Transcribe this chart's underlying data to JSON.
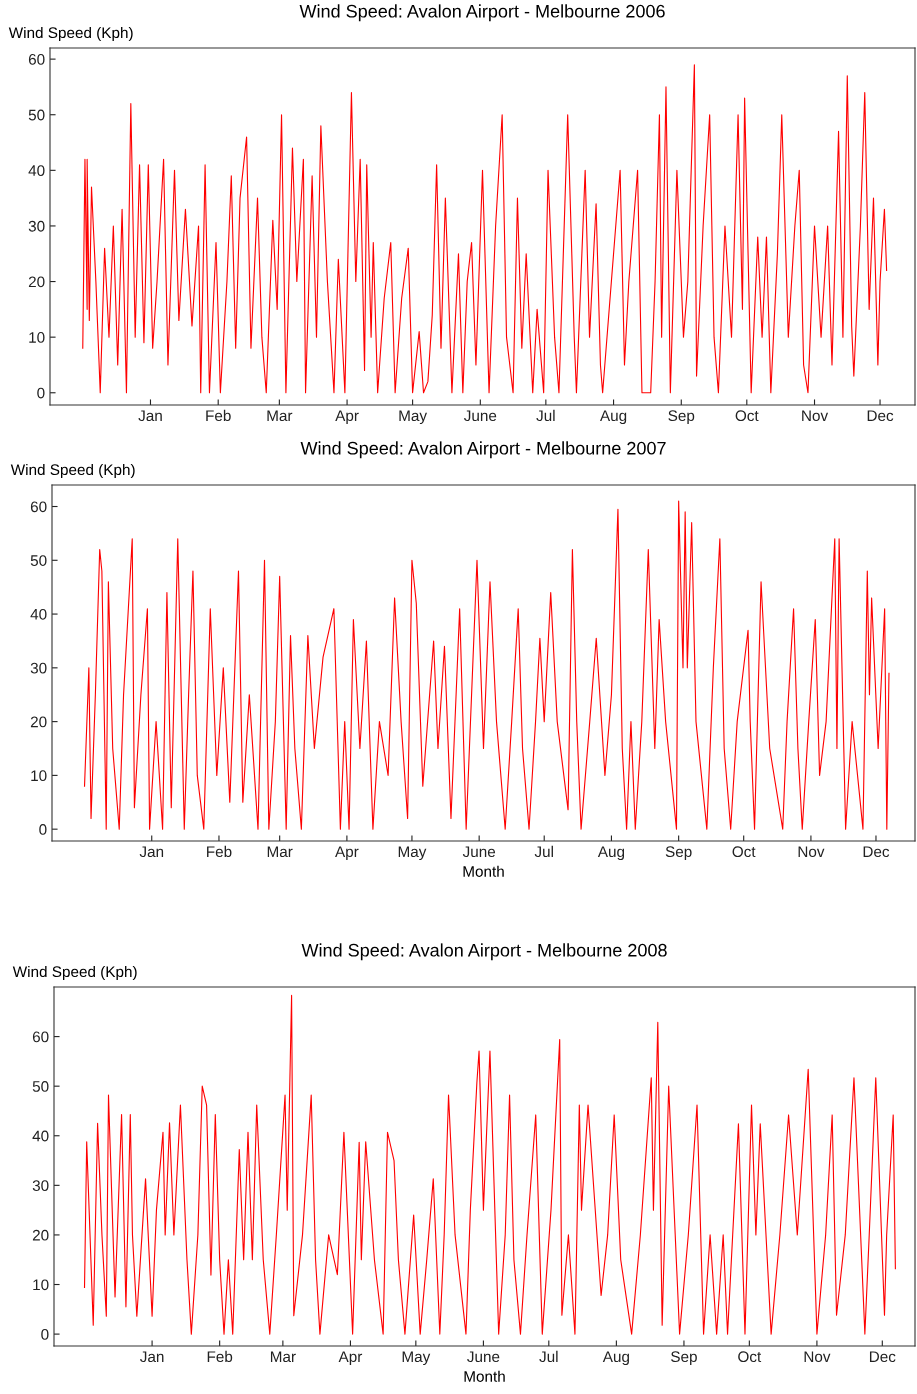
{
  "chart_data": [
    {
      "type": "line",
      "title": "Wind Speed: Avalon Airport - Melbourne 2006",
      "ylabel": "Wind Speed (Kph)",
      "xlim": [
        "2005-11-16",
        "2006-12-17"
      ],
      "ylim": [
        -2.2,
        62
      ],
      "yticks": [
        0,
        10,
        20,
        30,
        40,
        50,
        60
      ],
      "xticks": [
        {
          "value": "2006-01-01",
          "label": "Jan"
        },
        {
          "value": "2006-02-01",
          "label": "Feb"
        },
        {
          "value": "2006-03-01",
          "label": "Mar"
        },
        {
          "value": "2006-04-01",
          "label": "Apr"
        },
        {
          "value": "2006-05-01",
          "label": "May"
        },
        {
          "value": "2006-06-01",
          "label": "June"
        },
        {
          "value": "2006-07-01",
          "label": "Jul"
        },
        {
          "value": "2006-08-01",
          "label": "Aug"
        },
        {
          "value": "2006-09-01",
          "label": "Sep"
        },
        {
          "value": "2006-10-01",
          "label": "Oct"
        },
        {
          "value": "2006-11-01",
          "label": "Nov"
        },
        {
          "value": "2006-12-01",
          "label": "Dec"
        }
      ],
      "line_style": "solid",
      "series": [
        {
          "color": "#ff0000",
          "x": [
            "2005-12-01",
            "2005-12-02",
            "2005-12-03",
            "2005-12-03",
            "2005-12-04",
            "2005-12-05",
            "2005-12-07",
            "2005-12-09",
            "2005-12-11",
            "2005-12-13",
            "2005-12-15",
            "2005-12-17",
            "2005-12-19",
            "2005-12-21",
            "2005-12-23",
            "2005-12-25",
            "2005-12-27",
            "2005-12-29",
            "2005-12-31",
            "2006-01-02",
            "2006-01-04",
            "2006-01-07",
            "2006-01-09",
            "2006-01-12",
            "2006-01-14",
            "2006-01-17",
            "2006-01-20",
            "2006-01-23",
            "2006-01-24",
            "2006-01-26",
            "2006-01-28",
            "2006-01-31",
            "2006-02-02",
            "2006-02-05",
            "2006-02-07",
            "2006-02-09",
            "2006-02-11",
            "2006-02-14",
            "2006-02-16",
            "2006-02-19",
            "2006-02-21",
            "2006-02-23",
            "2006-02-26",
            "2006-02-28",
            "2006-03-02",
            "2006-03-04",
            "2006-03-07",
            "2006-03-09",
            "2006-03-12",
            "2006-03-13",
            "2006-03-16",
            "2006-03-18",
            "2006-03-20",
            "2006-03-23",
            "2006-03-26",
            "2006-03-28",
            "2006-03-31",
            "2006-04-03",
            "2006-04-05",
            "2006-04-07",
            "2006-04-09",
            "2006-04-10",
            "2006-04-12",
            "2006-04-13",
            "2006-04-15",
            "2006-04-18",
            "2006-04-21",
            "2006-04-23",
            "2006-04-26",
            "2006-04-29",
            "2006-05-01",
            "2006-05-04",
            "2006-05-06",
            "2006-05-08",
            "2006-05-10",
            "2006-05-12",
            "2006-05-14",
            "2006-05-16",
            "2006-05-19",
            "2006-05-22",
            "2006-05-24",
            "2006-05-26",
            "2006-05-28",
            "2006-05-30",
            "2006-06-02",
            "2006-06-05",
            "2006-06-08",
            "2006-06-11",
            "2006-06-13",
            "2006-06-16",
            "2006-06-18",
            "2006-06-20",
            "2006-06-22",
            "2006-06-25",
            "2006-06-27",
            "2006-06-30",
            "2006-07-02",
            "2006-07-05",
            "2006-07-07",
            "2006-07-11",
            "2006-07-14",
            "2006-07-15",
            "2006-07-19",
            "2006-07-21",
            "2006-07-24",
            "2006-07-26",
            "2006-07-27",
            "2006-07-31",
            "2006-08-04",
            "2006-08-06",
            "2006-08-08",
            "2006-08-12",
            "2006-08-14",
            "2006-08-18",
            "2006-08-20",
            "2006-08-22",
            "2006-08-23",
            "2006-08-25",
            "2006-08-27",
            "2006-08-30",
            "2006-09-02",
            "2006-09-04",
            "2006-09-07",
            "2006-09-08",
            "2006-09-11",
            "2006-09-14",
            "2006-09-16",
            "2006-09-18",
            "2006-09-21",
            "2006-09-24",
            "2006-09-27",
            "2006-09-29",
            "2006-09-30",
            "2006-10-03",
            "2006-10-06",
            "2006-10-08",
            "2006-10-10",
            "2006-10-12",
            "2006-10-15",
            "2006-10-17",
            "2006-10-20",
            "2006-10-23",
            "2006-10-25",
            "2006-10-27",
            "2006-10-29",
            "2006-11-01",
            "2006-11-04",
            "2006-11-07",
            "2006-11-09",
            "2006-11-12",
            "2006-11-14",
            "2006-11-16",
            "2006-11-18",
            "2006-11-19",
            "2006-11-22",
            "2006-11-24",
            "2006-11-26",
            "2006-11-28",
            "2006-11-30",
            "2006-12-01",
            "2006-12-03",
            "2006-12-04"
          ],
          "values": [
            8,
            42,
            15,
            42,
            13,
            37,
            20,
            0,
            26,
            10,
            30,
            5,
            33,
            0,
            52,
            10,
            41,
            9,
            41,
            8,
            20,
            42,
            5,
            40,
            13,
            33,
            12,
            30,
            0,
            41,
            0,
            27,
            0,
            20,
            39,
            8,
            35,
            46,
            8,
            35,
            10,
            0,
            31,
            15,
            50,
            0,
            44,
            20,
            42,
            0,
            39,
            10,
            48,
            20,
            0,
            24,
            0,
            54,
            20,
            42,
            4,
            41,
            10,
            27,
            0,
            17,
            27,
            0,
            17,
            26,
            0,
            11,
            0,
            2,
            14,
            41,
            8,
            35,
            0,
            25,
            0,
            20,
            27,
            5,
            40,
            0,
            30,
            50,
            10,
            0,
            35,
            8,
            25,
            0,
            15,
            0,
            40,
            10,
            0,
            50,
            10,
            0,
            40,
            10,
            34,
            5,
            0,
            20,
            40,
            5,
            20,
            40,
            0,
            0,
            20,
            50,
            10,
            55,
            0,
            40,
            10,
            20,
            59,
            3,
            30,
            50,
            10,
            0,
            30,
            10,
            50,
            15,
            53,
            0,
            28,
            10,
            28,
            0,
            25,
            50,
            10,
            30,
            40,
            5,
            0,
            30,
            10,
            30,
            5,
            47,
            10,
            57,
            12,
            3,
            30,
            54,
            15,
            35,
            5,
            20,
            33,
            22
          ]
        }
      ]
    },
    {
      "type": "line",
      "title": "Wind Speed: Avalon Airport - Melbourne 2007",
      "ylabel": "Wind Speed (Kph)",
      "xlabel": "Month",
      "xlim": [
        "2006-11-16",
        "2007-12-19"
      ],
      "ylim": [
        -2.2,
        64
      ],
      "yticks": [
        0,
        10,
        20,
        30,
        40,
        50,
        60
      ],
      "xticks": [
        {
          "value": "2007-01-01",
          "label": "Jan"
        },
        {
          "value": "2007-02-01",
          "label": "Feb"
        },
        {
          "value": "2007-03-01",
          "label": "Mar"
        },
        {
          "value": "2007-04-01",
          "label": "Apr"
        },
        {
          "value": "2007-05-01",
          "label": "May"
        },
        {
          "value": "2007-06-01",
          "label": "June"
        },
        {
          "value": "2007-07-01",
          "label": "Jul"
        },
        {
          "value": "2007-08-01",
          "label": "Aug"
        },
        {
          "value": "2007-09-01",
          "label": "Sep"
        },
        {
          "value": "2007-10-01",
          "label": "Oct"
        },
        {
          "value": "2007-11-01",
          "label": "Nov"
        },
        {
          "value": "2007-12-01",
          "label": "Dec"
        }
      ],
      "line_style": "solid",
      "series": [
        {
          "color": "#ff0000",
          "x": [
            "2006-12-01",
            "2006-12-03",
            "2006-12-04",
            "2006-12-06",
            "2006-12-08",
            "2006-12-09",
            "2006-12-11",
            "2006-12-12",
            "2006-12-14",
            "2006-12-17",
            "2006-12-19",
            "2006-12-23",
            "2006-12-24",
            "2006-12-27",
            "2006-12-30",
            "2006-12-31",
            "2007-01-03",
            "2007-01-06",
            "2007-01-08",
            "2007-01-10",
            "2007-01-13",
            "2007-01-16",
            "2007-01-18",
            "2007-01-20",
            "2007-01-22",
            "2007-01-25",
            "2007-01-28",
            "2007-01-31",
            "2007-02-03",
            "2007-02-06",
            "2007-02-10",
            "2007-02-12",
            "2007-02-15",
            "2007-02-19",
            "2007-02-22",
            "2007-02-24",
            "2007-02-27",
            "2007-03-01",
            "2007-03-04",
            "2007-03-06",
            "2007-03-08",
            "2007-03-11",
            "2007-03-14",
            "2007-03-17",
            "2007-03-21",
            "2007-03-26",
            "2007-03-29",
            "2007-03-31",
            "2007-04-02",
            "2007-04-04",
            "2007-04-07",
            "2007-04-10",
            "2007-04-13",
            "2007-04-16",
            "2007-04-20",
            "2007-04-23",
            "2007-04-26",
            "2007-04-29",
            "2007-05-01",
            "2007-05-03",
            "2007-05-06",
            "2007-05-11",
            "2007-05-13",
            "2007-05-16",
            "2007-05-19",
            "2007-05-23",
            "2007-05-26",
            "2007-05-31",
            "2007-06-03",
            "2007-06-06",
            "2007-06-09",
            "2007-06-13",
            "2007-06-16",
            "2007-06-19",
            "2007-06-21",
            "2007-06-24",
            "2007-06-27",
            "2007-06-29",
            "2007-07-01",
            "2007-07-04",
            "2007-07-07",
            "2007-07-12",
            "2007-07-14",
            "2007-07-16",
            "2007-07-18",
            "2007-07-22",
            "2007-07-25",
            "2007-07-29",
            "2007-08-01",
            "2007-08-04",
            "2007-08-06",
            "2007-08-08",
            "2007-08-10",
            "2007-08-12",
            "2007-08-15",
            "2007-08-18",
            "2007-08-21",
            "2007-08-23",
            "2007-08-26",
            "2007-08-31",
            "2007-09-01",
            "2007-09-03",
            "2007-09-04",
            "2007-09-05",
            "2007-09-07",
            "2007-09-09",
            "2007-09-14",
            "2007-09-17",
            "2007-09-20",
            "2007-09-22",
            "2007-09-25",
            "2007-09-28",
            "2007-10-03",
            "2007-10-04",
            "2007-10-06",
            "2007-10-09",
            "2007-10-13",
            "2007-10-19",
            "2007-10-21",
            "2007-10-24",
            "2007-10-26",
            "2007-10-28",
            "2007-10-31",
            "2007-11-03",
            "2007-11-05",
            "2007-11-08",
            "2007-11-12",
            "2007-11-13",
            "2007-11-14",
            "2007-11-17",
            "2007-11-20",
            "2007-11-25",
            "2007-11-27",
            "2007-11-28",
            "2007-11-29",
            "2007-12-02",
            "2007-12-05",
            "2007-12-06",
            "2007-12-07"
          ],
          "values": [
            8,
            30,
            2,
            25,
            52,
            48,
            0,
            46,
            15,
            0,
            25,
            54,
            4,
            25,
            41,
            0,
            20,
            0,
            44,
            4,
            54,
            0,
            25,
            48,
            10,
            0,
            41,
            10,
            30,
            5,
            48,
            5,
            25,
            0,
            50,
            0,
            20,
            47,
            0,
            36,
            15,
            0,
            36,
            15,
            32,
            41,
            0,
            20,
            0,
            39,
            15,
            35,
            0,
            20,
            10,
            43,
            20,
            2,
            50,
            42,
            8,
            35,
            15,
            34,
            2,
            41,
            0,
            50,
            15,
            46,
            20,
            0,
            20,
            41,
            15,
            0,
            20,
            35.5,
            20,
            44,
            20,
            3.6,
            52,
            20,
            0,
            20,
            35.5,
            10,
            25,
            59.5,
            15,
            0,
            20,
            0,
            20,
            52,
            15,
            39,
            20,
            0,
            61,
            30,
            59,
            30,
            57,
            20,
            0,
            30,
            54,
            15,
            0,
            20,
            37,
            20,
            0,
            46,
            15,
            0,
            20,
            41,
            15,
            0,
            20,
            39,
            10,
            20,
            54,
            15,
            54,
            0,
            20,
            0,
            48,
            25,
            43,
            15,
            41,
            0,
            29
          ]
        }
      ]
    },
    {
      "type": "line",
      "title": "Wind Speed: Avalon Airport - Melbourne 2008",
      "ylabel": "Wind Speed (Kph)",
      "xlabel": "Month",
      "xlim": [
        "2007-11-17",
        "2008-12-16"
      ],
      "ylim": [
        -2.4,
        70
      ],
      "yticks": [
        0,
        10,
        20,
        30,
        40,
        50,
        60
      ],
      "xticks": [
        {
          "value": "2008-01-01",
          "label": "Jan"
        },
        {
          "value": "2008-02-01",
          "label": "Feb"
        },
        {
          "value": "2008-03-01",
          "label": "Mar"
        },
        {
          "value": "2008-04-01",
          "label": "Apr"
        },
        {
          "value": "2008-05-01",
          "label": "May"
        },
        {
          "value": "2008-06-01",
          "label": "June"
        },
        {
          "value": "2008-07-01",
          "label": "Jul"
        },
        {
          "value": "2008-08-01",
          "label": "Aug"
        },
        {
          "value": "2008-09-01",
          "label": "Sep"
        },
        {
          "value": "2008-10-01",
          "label": "Oct"
        },
        {
          "value": "2008-11-01",
          "label": "Nov"
        },
        {
          "value": "2008-12-01",
          "label": "Dec"
        }
      ],
      "line_style": "solid",
      "series": [
        {
          "color": "#ff0000",
          "x": [
            "2007-12-01",
            "2007-12-02",
            "2007-12-05",
            "2007-12-07",
            "2007-12-09",
            "2007-12-11",
            "2007-12-12",
            "2007-12-15",
            "2007-12-18",
            "2007-12-20",
            "2007-12-22",
            "2007-12-23",
            "2007-12-25",
            "2007-12-29",
            "2008-01-01",
            "2008-01-03",
            "2008-01-06",
            "2008-01-07",
            "2008-01-09",
            "2008-01-11",
            "2008-01-14",
            "2008-01-17",
            "2008-01-19",
            "2008-01-22",
            "2008-01-24",
            "2008-01-26",
            "2008-01-28",
            "2008-01-30",
            "2008-02-01",
            "2008-02-03",
            "2008-02-05",
            "2008-02-07",
            "2008-02-10",
            "2008-02-12",
            "2008-02-14",
            "2008-02-16",
            "2008-02-18",
            "2008-02-21",
            "2008-02-24",
            "2008-02-27",
            "2008-03-02",
            "2008-03-03",
            "2008-03-05",
            "2008-03-06",
            "2008-03-10",
            "2008-03-14",
            "2008-03-16",
            "2008-03-18",
            "2008-03-22",
            "2008-03-26",
            "2008-03-29",
            "2008-04-02",
            "2008-04-05",
            "2008-04-06",
            "2008-04-08",
            "2008-04-12",
            "2008-04-16",
            "2008-04-18",
            "2008-04-21",
            "2008-04-23",
            "2008-04-26",
            "2008-04-30",
            "2008-05-03",
            "2008-05-06",
            "2008-05-09",
            "2008-05-12",
            "2008-05-14",
            "2008-05-16",
            "2008-05-19",
            "2008-05-24",
            "2008-05-26",
            "2008-05-29",
            "2008-05-30",
            "2008-06-01",
            "2008-06-04",
            "2008-06-08",
            "2008-06-11",
            "2008-06-13",
            "2008-06-15",
            "2008-06-18",
            "2008-06-21",
            "2008-06-25",
            "2008-06-28",
            "2008-07-02",
            "2008-07-06",
            "2008-07-07",
            "2008-07-10",
            "2008-07-13",
            "2008-07-15",
            "2008-07-16",
            "2008-07-19",
            "2008-07-25",
            "2008-07-28",
            "2008-07-31",
            "2008-08-03",
            "2008-08-08",
            "2008-08-12",
            "2008-08-17",
            "2008-08-18",
            "2008-08-20",
            "2008-08-22",
            "2008-08-25",
            "2008-08-30",
            "2008-09-03",
            "2008-09-07",
            "2008-09-10",
            "2008-09-13",
            "2008-09-16",
            "2008-09-19",
            "2008-09-21",
            "2008-09-26",
            "2008-09-29",
            "2008-10-02",
            "2008-10-04",
            "2008-10-06",
            "2008-10-11",
            "2008-10-15",
            "2008-10-19",
            "2008-10-23",
            "2008-10-28",
            "2008-11-01",
            "2008-11-05",
            "2008-11-08",
            "2008-11-10",
            "2008-11-14",
            "2008-11-18",
            "2008-11-23",
            "2008-11-25",
            "2008-11-28",
            "2008-12-02",
            "2008-12-03",
            "2008-12-06",
            "2008-12-07"
          ],
          "values": [
            9.4,
            38.8,
            1.8,
            42.5,
            20,
            3.6,
            48.2,
            7.5,
            44.3,
            5.5,
            44.3,
            20,
            3.6,
            31.3,
            3.6,
            25,
            40.7,
            20,
            42.6,
            20,
            46.2,
            15,
            0,
            20,
            50,
            46.2,
            11.9,
            44.3,
            15,
            0,
            15,
            0,
            37.2,
            15,
            40.7,
            15,
            46.2,
            15,
            0,
            20,
            48.2,
            25,
            68.3,
            3.7,
            20,
            48.2,
            15,
            0,
            20,
            12,
            40.7,
            0,
            38.7,
            15,
            38.8,
            15,
            0,
            40.7,
            35,
            15,
            0,
            24,
            0,
            15,
            31.3,
            0,
            20,
            48.2,
            20,
            0,
            25,
            50.7,
            57.1,
            25,
            57.1,
            0,
            20,
            48.2,
            15,
            0,
            20,
            44.2,
            0,
            25,
            59.4,
            3.8,
            20,
            0,
            46.2,
            25,
            46.2,
            7.8,
            20,
            44.2,
            15,
            0,
            20,
            51.7,
            25,
            62.9,
            1.8,
            50,
            0,
            20,
            46.2,
            0,
            20,
            0,
            20,
            0,
            42.4,
            0,
            46.2,
            20,
            42.4,
            0,
            20,
            44.2,
            20,
            53.4,
            0,
            20,
            44.2,
            3.8,
            20,
            51.7,
            0,
            20,
            51.7,
            3.8,
            20,
            44.2,
            13.2
          ]
        }
      ]
    }
  ]
}
